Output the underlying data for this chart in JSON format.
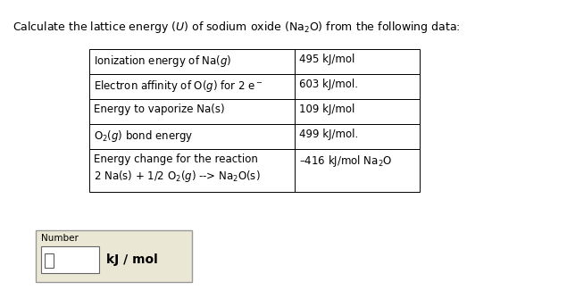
{
  "title": "Calculate the lattice energy ($\\it{U}$) of sodium oxide (Na$_2$O) from the following data:",
  "table_rows_left": [
    "Ionization energy of Na($\\it{g}$)",
    "Electron affinity of O($\\it{g}$) for 2 e$^-$",
    "Energy to vaporize Na(s)",
    "O$_2$($\\it{g}$) bond energy",
    "Energy change for the reaction\n2 Na(s) + 1/2 O$_2$($\\it{g}$) --> Na$_2$O(s)"
  ],
  "table_rows_right": [
    "495 kJ/mol",
    "603 kJ/mol.",
    "109 kJ/mol",
    "499 kJ/mol.",
    "–416 kJ/mol Na$_2$O"
  ],
  "font_size": 8.5,
  "bg_color": "#ffffff",
  "number_box_color": "#eae8d5"
}
